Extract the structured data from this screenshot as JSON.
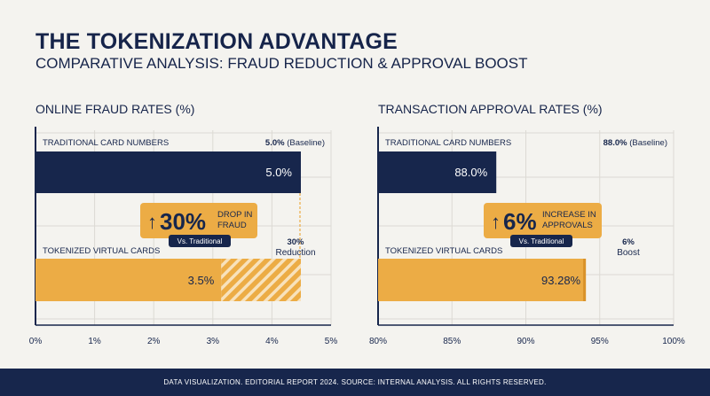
{
  "header": {
    "title": "THE TOKENIZATION ADVANTAGE",
    "subtitle": "COMPARATIVE ANALYSIS: FRAUD REDUCTION & APPROVAL BOOST"
  },
  "colors": {
    "navy": "#17264c",
    "gold": "#ecac45",
    "gold_dark": "#d9922a",
    "grid": "#dcdad4",
    "background": "#f4f3ef"
  },
  "chart_data": [
    {
      "type": "bar",
      "title": "ONLINE FRAUD RATES (%)",
      "xlim": [
        0,
        5
      ],
      "xticks": [
        0,
        1,
        2,
        3,
        4,
        5
      ],
      "tick_labels": [
        "0%",
        "1%",
        "2%",
        "3%",
        "4%",
        "5%"
      ],
      "grid": true,
      "bars": [
        {
          "category": "TRADITIONAL CARD NUMBERS",
          "value": 5.0,
          "value_label": "5.0%",
          "note_bold": "5.0%",
          "note_rest": " (Baseline)",
          "color": "#17264c"
        },
        {
          "category": "TOKENIZED VIRTUAL CARDS",
          "value": 3.5,
          "value_label": "3.5%",
          "color": "#ecac45",
          "ghost_value": 5.0
        }
      ],
      "callout": {
        "arrow": "↑",
        "big": "30%",
        "line1": "DROP IN",
        "line2": "FRAUD",
        "tag": "Vs. Traditional"
      },
      "side_note": {
        "line1": "30%",
        "line2": "Reduction"
      }
    },
    {
      "type": "bar",
      "title": "TRANSACTION APPROVAL RATES (%)",
      "xlim": [
        80,
        100
      ],
      "xticks": [
        80,
        85,
        90,
        95,
        100
      ],
      "tick_labels": [
        "80%",
        "85%",
        "90%",
        "95%",
        "100%"
      ],
      "grid": true,
      "bars": [
        {
          "category": "TRADITIONAL CARD NUMBERS",
          "value": 88.0,
          "value_label": "88.0%",
          "note_bold": "88.0%",
          "note_rest": " (Baseline)",
          "color": "#17264c"
        },
        {
          "category": "TOKENIZED VIRTUAL CARDS",
          "value": 93.28,
          "value_label": "93.28%",
          "color": "#ecac45",
          "highlight_from": 94.0
        }
      ],
      "callout": {
        "arrow": "↑",
        "big": "6%",
        "line1": "INCREASE IN",
        "line2": "APPROVALS",
        "tag": "Vs. Traditional"
      },
      "side_note": {
        "line1": "6%",
        "line2": "Boost"
      }
    }
  ],
  "footer": {
    "text": "DATA VISUALIZATION. EDITORIAL REPORT 2024. SOURCE: INTERNAL ANALYSIS. ALL RIGHTS RESERVED."
  }
}
